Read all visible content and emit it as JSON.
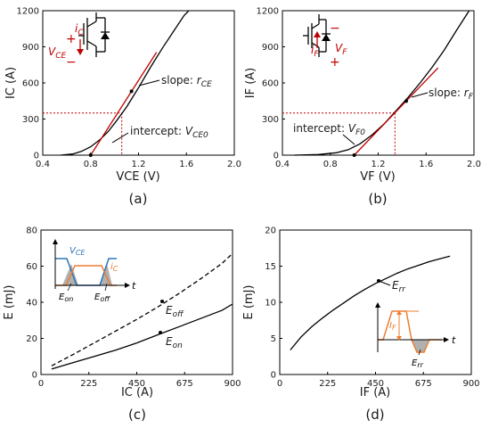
{
  "chart_data": [
    {
      "panel": "(a)",
      "type": "line",
      "xlabel": "VCE (V)",
      "ylabel": "IC (A)",
      "xlim": [
        0.4,
        2.0
      ],
      "ylim": [
        0,
        1200
      ],
      "xticks": [
        "0.4",
        "0.8",
        "1.2",
        "1.6",
        "2.0"
      ],
      "yticks": [
        "0",
        "300",
        "600",
        "900",
        "1200"
      ],
      "series": [
        {
          "name": "",
          "color": "#000000",
          "x": [
            0.55,
            0.65,
            0.72,
            0.8,
            0.88,
            0.95,
            1.02,
            1.1,
            1.2,
            1.3,
            1.4,
            1.5,
            1.58,
            1.62
          ],
          "y": [
            0,
            10,
            30,
            70,
            130,
            200,
            290,
            400,
            560,
            730,
            890,
            1040,
            1160,
            1200
          ]
        },
        {
          "name": "tangent",
          "color": "#c00000",
          "x": [
            0.8,
            1.35
          ],
          "y": [
            0,
            855
          ]
        }
      ],
      "operating_point": {
        "x": 1.06,
        "y": 350
      },
      "annotations": {
        "slope": "slope: ",
        "slope_sym": "r",
        "slope_sub": "CE",
        "intercept": "intercept: ",
        "intercept_sym": "V",
        "intercept_sub": "CE0"
      },
      "symbol": {
        "current": "i",
        "current_sub": "C",
        "voltage": "V",
        "voltage_sub": "CE",
        "plus": "+",
        "minus": "−"
      },
      "caption": "(a)"
    },
    {
      "panel": "(b)",
      "type": "line",
      "xlabel": "VF (V)",
      "ylabel": "IF (A)",
      "xlim": [
        0.4,
        2.0
      ],
      "ylim": [
        0,
        1200
      ],
      "xticks": [
        "0.4",
        "0.8",
        "1.2",
        "1.6",
        "2.0"
      ],
      "yticks": [
        "0",
        "300",
        "600",
        "900",
        "1200"
      ],
      "series": [
        {
          "name": "",
          "color": "#000000",
          "x": [
            0.5,
            0.7,
            0.85,
            0.95,
            1.05,
            1.15,
            1.25,
            1.35,
            1.45,
            1.55,
            1.65,
            1.75,
            1.85,
            1.96
          ],
          "y": [
            0,
            5,
            20,
            45,
            95,
            170,
            260,
            370,
            480,
            600,
            730,
            870,
            1030,
            1200
          ]
        },
        {
          "name": "tangent",
          "color": "#c00000",
          "x": [
            1.0,
            1.7
          ],
          "y": [
            0,
            725
          ]
        }
      ],
      "operating_point": {
        "x": 1.34,
        "y": 350
      },
      "annotations": {
        "slope": "slope: ",
        "slope_sym": "r",
        "slope_sub": "F",
        "intercept": "intercept: ",
        "intercept_sym": "V",
        "intercept_sub": "F0"
      },
      "symbol": {
        "current": "i",
        "current_sub": "F",
        "voltage": "V",
        "voltage_sub": "F",
        "plus": "+",
        "minus": "−"
      },
      "caption": "(b)"
    },
    {
      "panel": "(c)",
      "type": "line",
      "xlabel": "IC (A)",
      "ylabel": "E (mJ)",
      "xlim": [
        0,
        900
      ],
      "ylim": [
        0,
        80
      ],
      "xticks": [
        "0",
        "225",
        "450",
        "675",
        "900"
      ],
      "yticks": [
        "0",
        "20",
        "40",
        "60",
        "80"
      ],
      "series": [
        {
          "name": "E_off",
          "color": "#000000",
          "dash": true,
          "x": [
            50,
            150,
            250,
            350,
            450,
            550,
            650,
            750,
            850,
            900
          ],
          "y": [
            4.8,
            11,
            17.5,
            24,
            30.5,
            37.5,
            45,
            53,
            61.5,
            67
          ]
        },
        {
          "name": "E_on",
          "color": "#000000",
          "dash": false,
          "x": [
            50,
            150,
            250,
            350,
            450,
            550,
            650,
            750,
            850,
            900
          ],
          "y": [
            3,
            6.5,
            10,
            13.5,
            17.5,
            22,
            26.5,
            31,
            35.5,
            39
          ]
        }
      ],
      "labels": {
        "eoff_sym": "E",
        "eoff_sub": "off",
        "eon_sym": "E",
        "eon_sub": "on"
      },
      "inset": {
        "vce_sym": "V",
        "vce_sub": "CE",
        "ic_sym": "i",
        "ic_sub": "C",
        "t": "t",
        "eon_sym": "E",
        "eon_sub": "on",
        "eoff_sym": "E",
        "eoff_sub": "off"
      },
      "caption": "(c)"
    },
    {
      "panel": "(d)",
      "type": "line",
      "xlabel": "IF (A)",
      "ylabel": "E (mJ)",
      "xlim": [
        0,
        900
      ],
      "ylim": [
        0,
        20
      ],
      "xticks": [
        "0",
        "225",
        "450",
        "675",
        "900"
      ],
      "yticks": [
        "0",
        "5",
        "10",
        "15",
        "20"
      ],
      "series": [
        {
          "name": "E_rr",
          "color": "#000000",
          "x": [
            50,
            100,
            150,
            200,
            250,
            300,
            350,
            400,
            450,
            500,
            550,
            600,
            650,
            700,
            750,
            800
          ],
          "y": [
            3.4,
            5.2,
            6.6,
            7.8,
            8.9,
            9.9,
            10.9,
            11.8,
            12.6,
            13.3,
            14.0,
            14.6,
            15.1,
            15.6,
            16.0,
            16.4
          ]
        }
      ],
      "labels": {
        "err_sym": "E",
        "err_sub": "rr"
      },
      "inset": {
        "if_sym": "I",
        "if_sub": "F",
        "t": "t",
        "err_sym": "E",
        "err_sub": "rr"
      },
      "caption": "(d)"
    }
  ]
}
